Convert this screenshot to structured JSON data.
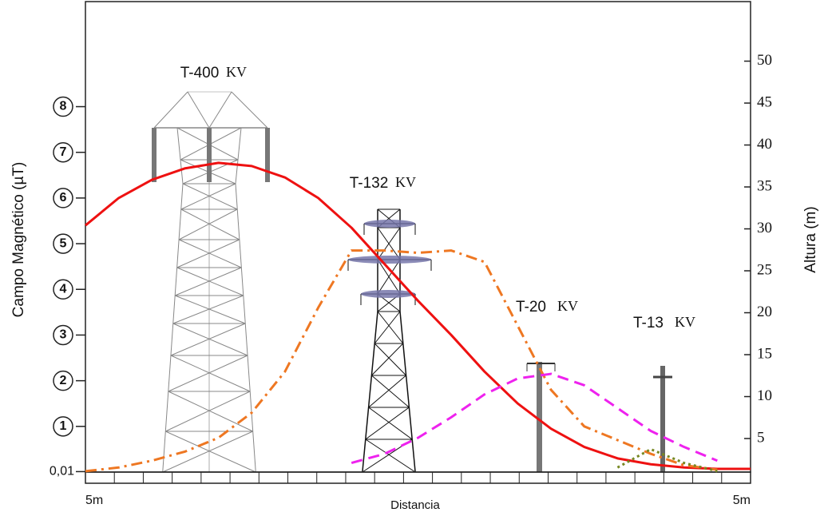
{
  "chart_data": {
    "type": "line",
    "y_label": "Campo Magnético (µT)",
    "y2_label": "Altura (m)",
    "x_label": "Distancia",
    "x_end_labels": [
      "5m",
      "5m"
    ],
    "x": [
      0,
      5,
      10,
      15,
      20,
      25,
      30,
      35,
      40,
      45,
      50,
      55,
      60,
      65,
      70,
      75,
      80,
      85,
      90,
      95,
      100
    ],
    "xlim": [
      0,
      100
    ],
    "ylim": [
      0,
      10.3
    ],
    "yticks": [
      {
        "value": 0.01,
        "label": "0,01"
      },
      1,
      2,
      3,
      4,
      5,
      6,
      7,
      8
    ],
    "y2lim": [
      1,
      57.1
    ],
    "y2ticks": [
      5,
      10,
      15,
      20,
      25,
      30,
      35,
      40,
      45,
      50
    ],
    "series": [
      {
        "color": "#ee1111",
        "dash": "solid",
        "values": [
          5.4,
          6.0,
          6.4,
          6.65,
          6.77,
          6.7,
          6.45,
          6.0,
          5.35,
          4.55,
          3.75,
          3.0,
          2.2,
          1.5,
          0.95,
          0.55,
          0.3,
          0.17,
          0.1,
          0.07,
          0.07
        ]
      },
      {
        "color": "#ee7722",
        "dash": "dashdot",
        "values": [
          0.02,
          0.1,
          0.25,
          0.45,
          0.75,
          1.3,
          2.2,
          3.6,
          4.85,
          4.85,
          4.8,
          4.85,
          4.6,
          3.2,
          1.8,
          1.0,
          0.7,
          0.4,
          0.15,
          0.05,
          null
        ]
      },
      {
        "color": "#ee22ee",
        "dash": "dashed",
        "values": [
          null,
          null,
          null,
          null,
          null,
          null,
          null,
          null,
          0.2,
          0.4,
          0.75,
          1.2,
          1.7,
          2.05,
          2.15,
          1.9,
          1.4,
          0.9,
          0.55,
          0.25,
          null
        ]
      },
      {
        "color": "#778822",
        "dash": "dotted",
        "values": [
          null,
          null,
          null,
          null,
          null,
          null,
          null,
          null,
          null,
          null,
          null,
          null,
          null,
          null,
          null,
          null,
          0.1,
          0.5,
          0.2,
          0.02,
          null
        ]
      }
    ],
    "annotations": [
      {
        "name": "T-400",
        "unit": "KV"
      },
      {
        "name": "T-132",
        "unit": "KV"
      },
      {
        "name": "T-20",
        "unit": "KV"
      },
      {
        "name": "T-13",
        "unit": "KV"
      }
    ]
  }
}
